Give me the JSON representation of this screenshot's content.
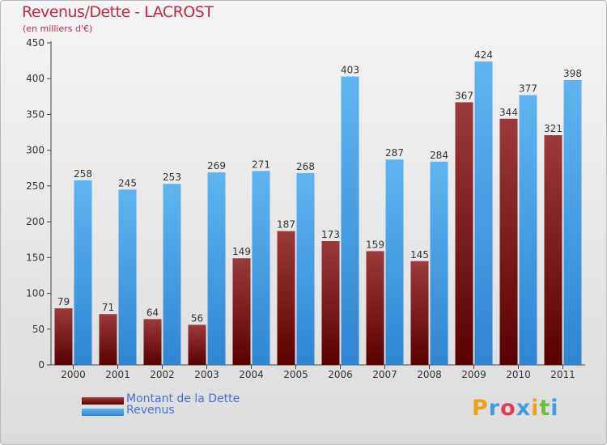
{
  "title": "Revenus/Dette - LACROST",
  "subtitle": "(en milliers d'€)",
  "colors": {
    "title": "#c0294b",
    "debt_top": "#9b3a3a",
    "debt_bottom": "#5a0000",
    "revenue_top": "#5fb4f0",
    "revenue_bottom": "#2f86d2",
    "legend_text": "#4a6fe0",
    "axis": "#444444"
  },
  "legend": {
    "debt_label": "Montant de la Dette",
    "revenue_label": "Revenus"
  },
  "logo": {
    "letters": [
      "P",
      "r",
      "o",
      "x",
      "i",
      "t",
      "i"
    ],
    "colors": [
      "#f0a020",
      "#3aa0e0",
      "#e04050",
      "#3aa0e0",
      "#f0a020",
      "#6cbf3a",
      "#3aa0e0"
    ]
  },
  "chart_data": {
    "type": "bar",
    "categories": [
      "2000",
      "2001",
      "2002",
      "2003",
      "2004",
      "2005",
      "2006",
      "2007",
      "2008",
      "2009",
      "2010",
      "2011"
    ],
    "series": [
      {
        "name": "Montant de la Dette",
        "values": [
          79,
          71,
          64,
          56,
          149,
          187,
          173,
          159,
          145,
          367,
          344,
          321
        ]
      },
      {
        "name": "Revenus",
        "values": [
          258,
          245,
          253,
          269,
          271,
          268,
          403,
          287,
          284,
          424,
          377,
          398
        ]
      }
    ],
    "ylim": [
      0,
      450
    ],
    "yticks": [
      0,
      50,
      100,
      150,
      200,
      250,
      300,
      350,
      400,
      450
    ],
    "grid": false,
    "legend_position": "bottom-left"
  }
}
